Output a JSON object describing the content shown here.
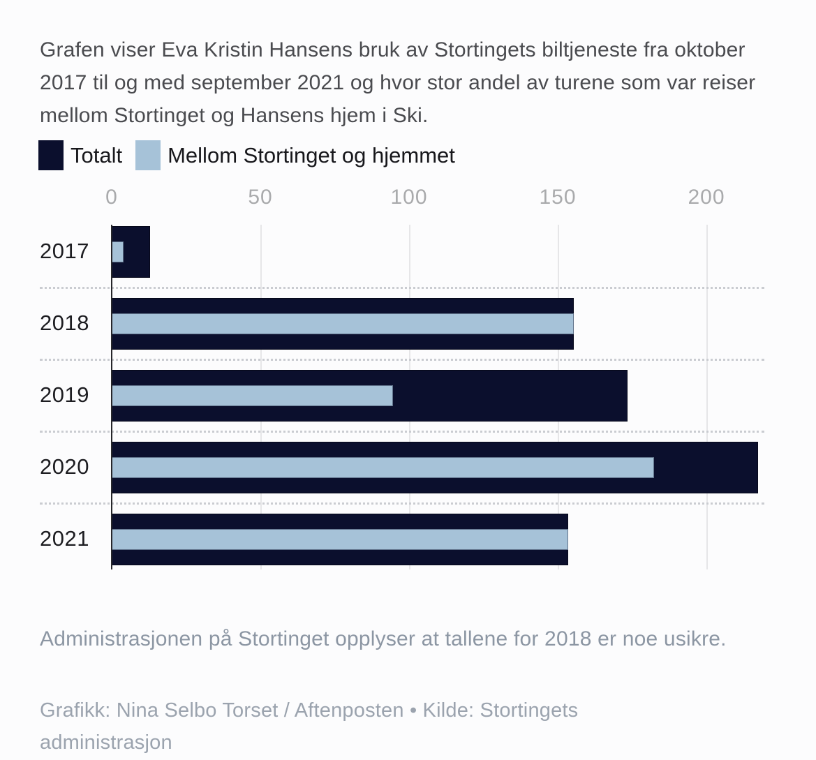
{
  "title": "Grafen viser Eva Kristin Hansens bruk av Stortingets biltjeneste fra oktober 2017 til og med september 2021 og hvor stor andel av turene som var reiser mellom Stortinget og Hansens hjem i Ski.",
  "colors": {
    "background": "#fcfcfd",
    "total_bar": "#0b0f2d",
    "home_bar": "#a6c2d8",
    "axis_line": "#27272b",
    "gridline": "#e6e6e8",
    "tick_text": "#a9aaac",
    "title_text": "#4a4b4f",
    "category_text": "#1d1d21",
    "note_text": "#8c96a3",
    "credit_text": "#9ba3ae"
  },
  "chart_data": {
    "type": "bar",
    "orientation": "horizontal",
    "title": "Grafen viser Eva Kristin Hansens bruk av Stortingets biltjeneste fra oktober 2017 til og med september 2021 og hvor stor andel av turene som var reiser mellom Stortinget og Hansens hjem i Ski.",
    "categories": [
      "2017",
      "2018",
      "2019",
      "2020",
      "2021"
    ],
    "series": [
      {
        "name": "Totalt",
        "color": "#0b0f2d",
        "values": [
          13,
          156,
          174,
          218,
          154
        ]
      },
      {
        "name": "Mellom Stortinget og hjemmet",
        "color": "#a6c2d8",
        "values": [
          4,
          156,
          95,
          183,
          154
        ]
      }
    ],
    "x_ticks": [
      0,
      50,
      100,
      150,
      200
    ],
    "xlim": [
      0,
      223
    ],
    "xlabel": "",
    "ylabel": "",
    "grid": "vertical-gridlines-on",
    "legend_position": "top-left"
  },
  "footer": {
    "note": "Administrasjonen på Stortinget opplyser at tallene for 2018 er noe usikre.",
    "credit": "Grafikk: Nina Selbo Torset / Aftenposten • Kilde: Stortingets administrasjon"
  }
}
